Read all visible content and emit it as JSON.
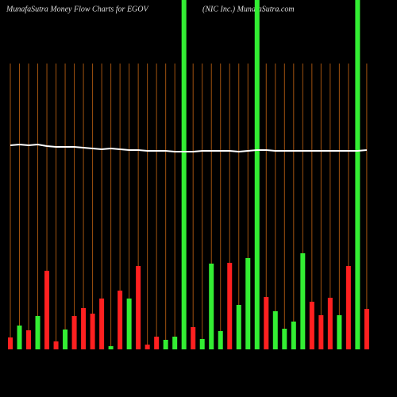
{
  "chart_data": {
    "type": "bar",
    "title": "MunafaSutra  Money Flow  Charts for EGOV",
    "subtitle": "(NIC Inc.) MunafaSutra.com",
    "categories": [
      null,
      null,
      null,
      null,
      null,
      null,
      null,
      null,
      null,
      null,
      null,
      null,
      null,
      null,
      null,
      null,
      null,
      null,
      null,
      null,
      null,
      null,
      null,
      null,
      null,
      null,
      null,
      null,
      null,
      null,
      null,
      null,
      null,
      null,
      null,
      null,
      null,
      null,
      null,
      null
    ],
    "values": [
      15,
      30,
      24,
      42,
      99,
      10,
      25,
      42,
      52,
      45,
      64,
      4,
      74,
      64,
      105,
      6,
      16,
      12,
      16,
      440,
      28,
      13,
      108,
      23,
      109,
      56,
      115,
      440,
      66,
      48,
      26,
      35,
      121,
      60,
      43,
      65,
      43,
      105,
      440,
      51
    ],
    "colors": [
      "#ff2020",
      "#33ee33",
      "#ff2020",
      "#33ee33",
      "#ff2020",
      "#ff2020",
      "#33ee33",
      "#ff2020",
      "#ff2020",
      "#ff2020",
      "#ff2020",
      "#33ee33",
      "#ff2020",
      "#33ee33",
      "#ff2020",
      "#ff2020",
      "#ff2020",
      "#33ee33",
      "#33ee33",
      "#33ee33",
      "#ff2020",
      "#33ee33",
      "#33ee33",
      "#33ee33",
      "#ff2020",
      "#33ee33",
      "#33ee33",
      "#33ee33",
      "#ff2020",
      "#33ee33",
      "#33ee33",
      "#33ee33",
      "#33ee33",
      "#ff2020",
      "#ff2020",
      "#ff2020",
      "#33ee33",
      "#ff2020",
      "#33ee33",
      "#ff2020"
    ],
    "line_values": [
      257,
      258,
      257,
      258,
      256,
      255,
      255,
      255,
      254,
      253,
      252,
      253,
      252,
      251,
      251,
      250,
      250,
      250,
      249,
      249,
      249,
      250,
      250,
      250,
      250,
      249,
      250,
      251,
      251,
      250,
      250,
      250,
      250,
      250,
      250,
      250,
      250,
      250,
      250,
      251
    ],
    "line_color": "#ffffff",
    "ylim": [
      0,
      440
    ],
    "grid": true,
    "grid_color": "#a0520f"
  }
}
